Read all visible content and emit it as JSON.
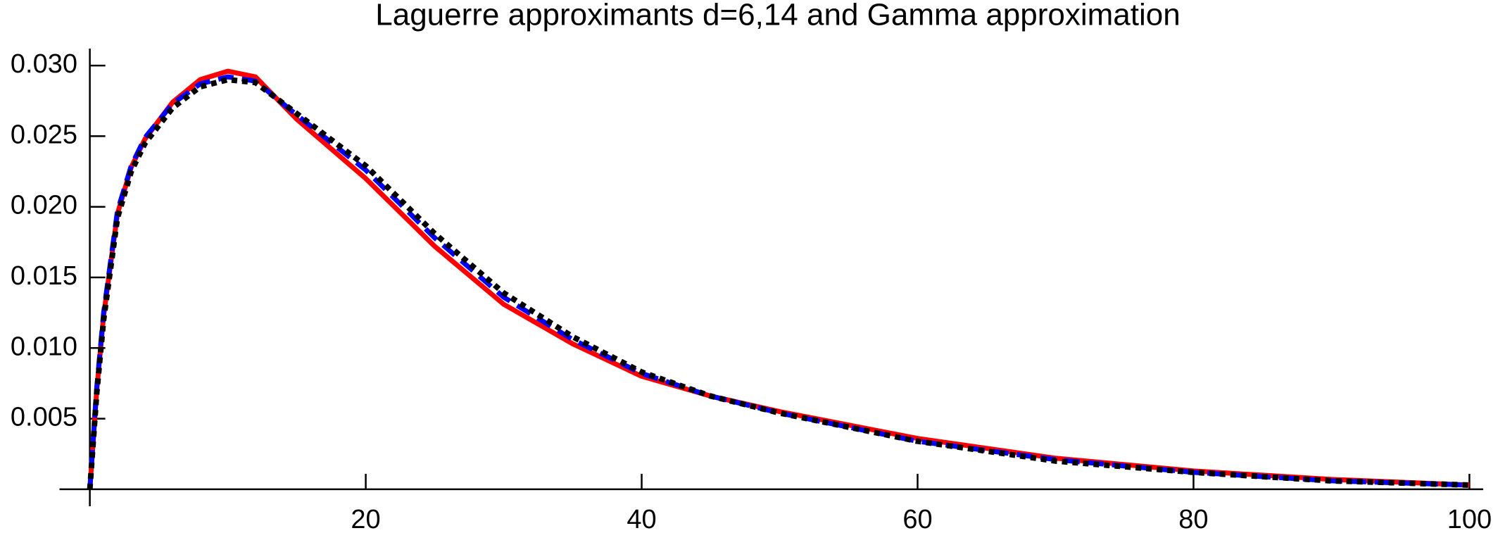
{
  "chart_data": {
    "type": "line",
    "title": "Laguerre approximants d=6,14 and Gamma approximation",
    "x": [
      0,
      0.5,
      1,
      2,
      3,
      4,
      6,
      8,
      10,
      12,
      15,
      20,
      25,
      30,
      35,
      40,
      45,
      50,
      60,
      70,
      80,
      90,
      100
    ],
    "series": [
      {
        "color": "#ff0000",
        "style": "solid",
        "values": [
          0,
          0.007,
          0.0123,
          0.0195,
          0.0228,
          0.0248,
          0.0274,
          0.029,
          0.0296,
          0.0292,
          0.0262,
          0.022,
          0.0172,
          0.0131,
          0.0103,
          0.008,
          0.0066,
          0.0055,
          0.0036,
          0.0022,
          0.0013,
          0.0007,
          0.0003
        ]
      },
      {
        "color": "#0000ff",
        "style": "dashed",
        "values": [
          0,
          0.0072,
          0.0125,
          0.0197,
          0.0229,
          0.0249,
          0.0273,
          0.0287,
          0.0292,
          0.0289,
          0.0265,
          0.0226,
          0.0178,
          0.0136,
          0.0106,
          0.0082,
          0.0066,
          0.0054,
          0.0034,
          0.0021,
          0.0012,
          0.0006,
          0.0003
        ]
      },
      {
        "color": "#000000",
        "style": "dotted",
        "values": [
          0,
          0.0068,
          0.012,
          0.0192,
          0.0225,
          0.0245,
          0.027,
          0.0285,
          0.029,
          0.0288,
          0.0266,
          0.0229,
          0.0181,
          0.0139,
          0.0108,
          0.0083,
          0.0066,
          0.0054,
          0.0034,
          0.002,
          0.0012,
          0.0006,
          0.0003
        ]
      }
    ],
    "xlim": [
      -2.2,
      101
    ],
    "ylim": [
      -0.0012,
      0.0312
    ],
    "xticks": [
      20,
      40,
      60,
      80,
      100
    ],
    "yticks": [
      0.005,
      {
        "value": 0.01,
        "label": "0.010"
      },
      0.015,
      {
        "value": 0.02,
        "label": "0.020"
      },
      0.025,
      {
        "value": 0.03,
        "label": "0.030"
      }
    ],
    "grid": false
  }
}
